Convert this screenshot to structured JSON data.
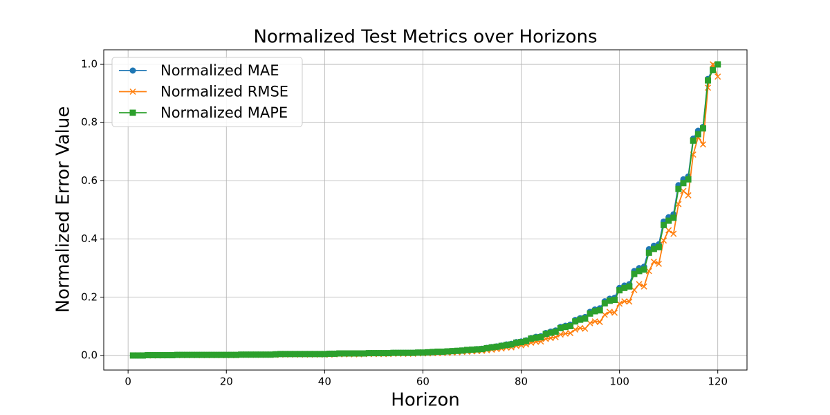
{
  "chart_data": {
    "type": "line",
    "title": "Normalized Test Metrics over Horizons",
    "xlabel": "Horizon",
    "ylabel": "Normalized Error Value",
    "x": [
      1,
      2,
      3,
      4,
      5,
      6,
      7,
      8,
      9,
      10,
      11,
      12,
      13,
      14,
      15,
      16,
      17,
      18,
      19,
      20,
      21,
      22,
      23,
      24,
      25,
      26,
      27,
      28,
      29,
      30,
      31,
      32,
      33,
      34,
      35,
      36,
      37,
      38,
      39,
      40,
      41,
      42,
      43,
      44,
      45,
      46,
      47,
      48,
      49,
      50,
      51,
      52,
      53,
      54,
      55,
      56,
      57,
      58,
      59,
      60,
      61,
      62,
      63,
      64,
      65,
      66,
      67,
      68,
      69,
      70,
      71,
      72,
      73,
      74,
      75,
      76,
      77,
      78,
      79,
      80,
      81,
      82,
      83,
      84,
      85,
      86,
      87,
      88,
      89,
      90,
      91,
      92,
      93,
      94,
      95,
      96,
      97,
      98,
      99,
      100,
      101,
      102,
      103,
      104,
      105,
      106,
      107,
      108,
      109,
      110,
      111,
      112,
      113,
      114,
      115,
      116,
      117,
      118,
      119,
      120
    ],
    "series": [
      {
        "name": "Normalized MAE",
        "color": "#1f77b4",
        "marker": "circle",
        "values": [
          0,
          0,
          0,
          0.001,
          0.001,
          0.001,
          0.001,
          0.001,
          0.001,
          0.002,
          0.002,
          0.002,
          0.002,
          0.002,
          0.002,
          0.002,
          0.002,
          0.002,
          0.002,
          0.002,
          0.002,
          0.002,
          0.003,
          0.003,
          0.003,
          0.003,
          0.003,
          0.003,
          0.003,
          0.004,
          0.005,
          0.005,
          0.005,
          0.005,
          0.005,
          0.005,
          0.005,
          0.005,
          0.005,
          0.005,
          0.006,
          0.006,
          0.007,
          0.007,
          0.007,
          0.007,
          0.007,
          0.007,
          0.008,
          0.008,
          0.008,
          0.008,
          0.008,
          0.009,
          0.009,
          0.009,
          0.009,
          0.009,
          0.01,
          0.01,
          0.011,
          0.012,
          0.013,
          0.013,
          0.014,
          0.015,
          0.016,
          0.017,
          0.019,
          0.02,
          0.022,
          0.023,
          0.026,
          0.029,
          0.031,
          0.034,
          0.038,
          0.04,
          0.046,
          0.048,
          0.052,
          0.06,
          0.064,
          0.066,
          0.077,
          0.082,
          0.086,
          0.098,
          0.102,
          0.106,
          0.122,
          0.128,
          0.132,
          0.15,
          0.158,
          0.162,
          0.186,
          0.195,
          0.198,
          0.232,
          0.24,
          0.245,
          0.29,
          0.3,
          0.305,
          0.365,
          0.377,
          0.382,
          0.46,
          0.475,
          0.485,
          0.585,
          0.605,
          0.615,
          0.745,
          0.772,
          0.785,
          0.95,
          0.985,
          1.0
        ]
      },
      {
        "name": "Normalized RMSE",
        "color": "#ff7f0e",
        "marker": "x",
        "values": [
          0,
          0,
          0,
          0,
          0,
          0,
          0,
          0.001,
          0.001,
          0.001,
          0.001,
          0.001,
          0.001,
          0.001,
          0.001,
          0.001,
          0.001,
          0.001,
          0.001,
          0.001,
          0.001,
          0.001,
          0.002,
          0.002,
          0.002,
          0.002,
          0.002,
          0.002,
          0.002,
          0.002,
          0.003,
          0.003,
          0.003,
          0.003,
          0.003,
          0.003,
          0.003,
          0.003,
          0.003,
          0.003,
          0.003,
          0.004,
          0.004,
          0.004,
          0.004,
          0.004,
          0.004,
          0.005,
          0.005,
          0.005,
          0.005,
          0.005,
          0.005,
          0.006,
          0.006,
          0.006,
          0.006,
          0.006,
          0.007,
          0.007,
          0.007,
          0.008,
          0.008,
          0.009,
          0.009,
          0.01,
          0.011,
          0.012,
          0.013,
          0.014,
          0.015,
          0.016,
          0.018,
          0.02,
          0.022,
          0.024,
          0.027,
          0.028,
          0.033,
          0.035,
          0.038,
          0.044,
          0.047,
          0.048,
          0.057,
          0.06,
          0.063,
          0.072,
          0.075,
          0.077,
          0.089,
          0.094,
          0.092,
          0.111,
          0.117,
          0.115,
          0.14,
          0.15,
          0.147,
          0.178,
          0.186,
          0.185,
          0.225,
          0.245,
          0.237,
          0.29,
          0.322,
          0.315,
          0.395,
          0.43,
          0.418,
          0.52,
          0.565,
          0.55,
          0.69,
          0.75,
          0.725,
          0.92,
          1.0,
          0.958
        ]
      },
      {
        "name": "Normalized MAPE",
        "color": "#2ca02c",
        "marker": "square",
        "values": [
          0,
          0,
          0,
          0.001,
          0.001,
          0.001,
          0.001,
          0.001,
          0.001,
          0.002,
          0.002,
          0.002,
          0.002,
          0.002,
          0.002,
          0.002,
          0.002,
          0.002,
          0.002,
          0.002,
          0.002,
          0.002,
          0.003,
          0.003,
          0.003,
          0.003,
          0.003,
          0.003,
          0.003,
          0.004,
          0.005,
          0.005,
          0.005,
          0.005,
          0.005,
          0.005,
          0.005,
          0.005,
          0.005,
          0.005,
          0.006,
          0.006,
          0.007,
          0.007,
          0.007,
          0.007,
          0.007,
          0.007,
          0.008,
          0.008,
          0.008,
          0.008,
          0.008,
          0.009,
          0.009,
          0.009,
          0.009,
          0.009,
          0.01,
          0.01,
          0.011,
          0.012,
          0.013,
          0.013,
          0.014,
          0.015,
          0.016,
          0.017,
          0.019,
          0.02,
          0.021,
          0.022,
          0.025,
          0.028,
          0.03,
          0.033,
          0.036,
          0.038,
          0.044,
          0.046,
          0.05,
          0.058,
          0.061,
          0.063,
          0.074,
          0.078,
          0.082,
          0.094,
          0.098,
          0.101,
          0.117,
          0.123,
          0.127,
          0.144,
          0.152,
          0.155,
          0.179,
          0.188,
          0.191,
          0.224,
          0.232,
          0.237,
          0.28,
          0.29,
          0.295,
          0.353,
          0.366,
          0.372,
          0.448,
          0.463,
          0.473,
          0.572,
          0.592,
          0.605,
          0.738,
          0.76,
          0.78,
          0.945,
          0.98,
          1.0
        ]
      }
    ],
    "xlim": [
      -4.95,
      125.95
    ],
    "ylim": [
      -0.05,
      1.05
    ],
    "xticks": [
      0,
      20,
      40,
      60,
      80,
      100,
      120
    ],
    "yticks": [
      {
        "value": 0,
        "label": "0.0"
      },
      0.2,
      0.4,
      0.6,
      0.8,
      {
        "value": 1,
        "label": "1.0"
      }
    ],
    "grid": true,
    "legend": "upper left"
  }
}
